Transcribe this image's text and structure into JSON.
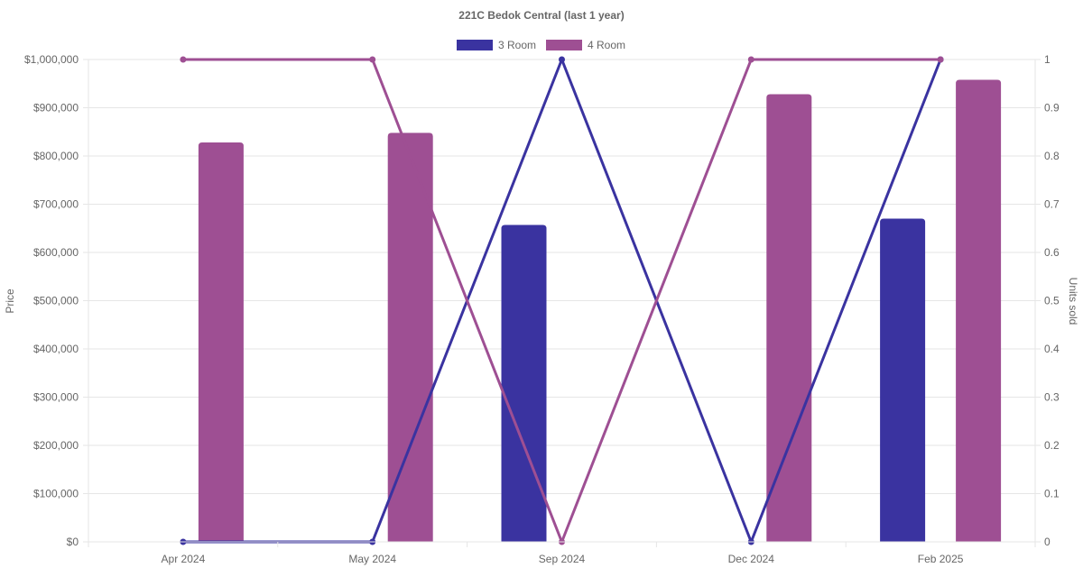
{
  "chart_data": {
    "type": "bar",
    "title": "221C Bedok Central (last 1 year)",
    "categories": [
      "Apr 2024",
      "May 2024",
      "Sep 2024",
      "Dec 2024",
      "Feb 2025"
    ],
    "y_left": {
      "label": "Price",
      "ylim": [
        0,
        1000000
      ],
      "ticks": [
        0,
        100000,
        200000,
        300000,
        400000,
        500000,
        600000,
        700000,
        800000,
        900000,
        1000000
      ],
      "tick_labels": [
        "$0",
        "$100,000",
        "$200,000",
        "$300,000",
        "$400,000",
        "$500,000",
        "$600,000",
        "$700,000",
        "$800,000",
        "$900,000",
        "$1,000,000"
      ]
    },
    "y_right": {
      "label": "Units sold",
      "ylim": [
        0,
        1
      ],
      "ticks": [
        0,
        0.1,
        0.2,
        0.3,
        0.4,
        0.5,
        0.6,
        0.7,
        0.8,
        0.9,
        1
      ],
      "tick_labels": [
        "0",
        "0.1",
        "0.2",
        "0.3",
        "0.4",
        "0.5",
        "0.6",
        "0.7",
        "0.8",
        "0.9",
        "1"
      ]
    },
    "series": [
      {
        "name": "3 Room",
        "color": "#3a33a0",
        "bar_values": [
          null,
          null,
          657000,
          null,
          670000
        ],
        "line_values": [
          0,
          0,
          1,
          0,
          1
        ]
      },
      {
        "name": "4 Room",
        "color": "#9e4f93",
        "bar_values": [
          828000,
          848000,
          null,
          928000,
          958000
        ],
        "line_values": [
          1,
          1,
          0,
          1,
          1
        ]
      }
    ],
    "legend": "top-center",
    "grid": true
  }
}
